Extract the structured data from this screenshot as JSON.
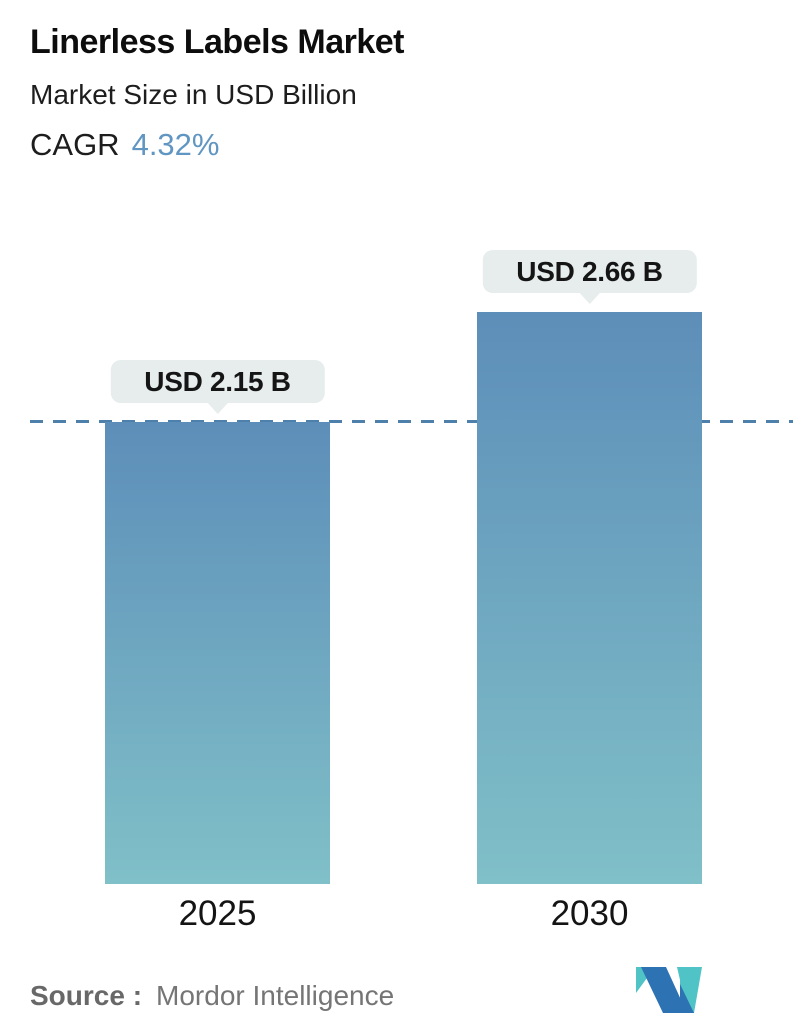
{
  "header": {
    "title": "Linerless Labels Market",
    "subtitle": "Market Size in USD Billion",
    "cagr_label": "CAGR",
    "cagr_value": "4.32%"
  },
  "bars": [
    {
      "year": "2025",
      "label": "USD 2.15 B",
      "value": 2.15
    },
    {
      "year": "2030",
      "label": "USD 2.66 B",
      "value": 2.66
    }
  ],
  "chart_data": {
    "type": "bar",
    "categories": [
      "2025",
      "2030"
    ],
    "values": [
      2.15,
      2.66
    ],
    "value_labels": [
      "USD 2.15 B",
      "USD 2.66 B"
    ],
    "title": "Linerless Labels Market",
    "subtitle": "Market Size in USD Billion",
    "cagr_percent": 4.32,
    "unit": "USD Billion",
    "reference_line": {
      "at_value": 2.15,
      "style": "dashed"
    },
    "grid": false,
    "legend": false
  },
  "footer": {
    "source_label": "Source :",
    "source_name": "Mordor Intelligence"
  },
  "icons": {
    "logo": "mordor-intelligence-logo"
  },
  "colors": {
    "cagr_accent": "#6096c1",
    "bar_gradient_top": "#5d8eb9",
    "bar_gradient_bottom": "#80c0c8",
    "dashed_line": "#4d80aa",
    "badge_bg": "#e6edec",
    "badge_text": "#151515",
    "title_text": "#0d0d0d",
    "source_text": "#757575",
    "logo_teal": "#4fc3c6",
    "logo_blue": "#2d72b2"
  }
}
